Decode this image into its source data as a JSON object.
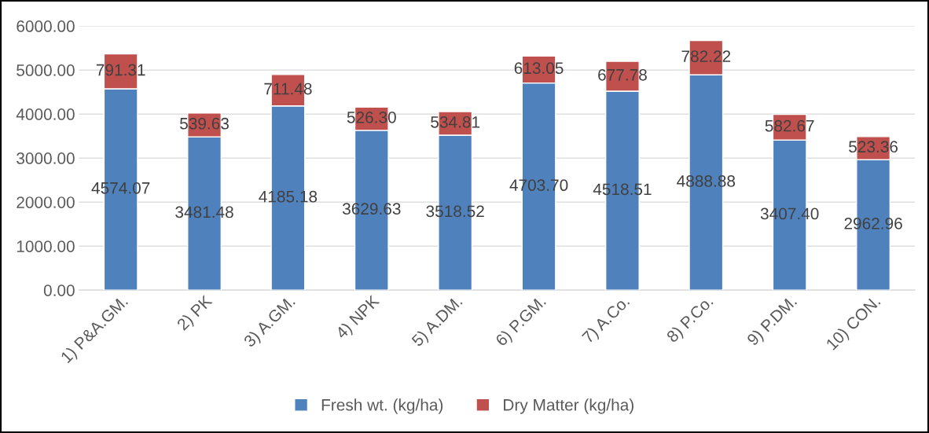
{
  "chart_data": {
    "type": "bar",
    "stacked": true,
    "categories": [
      "1) P&A.GM.",
      "2) PK",
      "3) A.GM.",
      "4) NPK",
      "5) A.DM.",
      "6) P.GM.",
      "7) A.Co.",
      "8) P.Co.",
      "9) P.DM.",
      "10) CON."
    ],
    "series": [
      {
        "name": "Fresh wt. (kg/ha)",
        "color": "#4f81bd",
        "values": [
          4574.07,
          3481.48,
          4185.18,
          3629.63,
          3518.52,
          4703.7,
          4518.51,
          4888.88,
          3407.4,
          2962.96
        ],
        "value_labels": [
          "4574.07",
          "3481.48",
          "4185.18",
          "3629.63",
          "3518.52",
          "4703.70",
          "4518.51",
          "4888.88",
          "3407.40",
          "2962.96"
        ]
      },
      {
        "name": "Dry Matter (kg/ha)",
        "color": "#c0504d",
        "values": [
          791.31,
          539.63,
          711.48,
          526.3,
          534.81,
          613.05,
          677.78,
          782.22,
          582.67,
          523.36
        ],
        "value_labels": [
          "791.31",
          "539.63",
          "711.48",
          "526.30",
          "534.81",
          "613.05",
          "677.78",
          "782.22",
          "582.67",
          "523.36"
        ]
      }
    ],
    "ylim": [
      0,
      6000
    ],
    "yticks": [
      {
        "value": 0,
        "label": "0.00"
      },
      {
        "value": 1000,
        "label": "1000.00"
      },
      {
        "value": 2000,
        "label": "2000.00"
      },
      {
        "value": 3000,
        "label": "3000.00"
      },
      {
        "value": 4000,
        "label": "4000.00"
      },
      {
        "value": 5000,
        "label": "5000.00"
      },
      {
        "value": 6000,
        "label": "6000.00"
      }
    ],
    "grid": "y",
    "legend": "bottom"
  }
}
